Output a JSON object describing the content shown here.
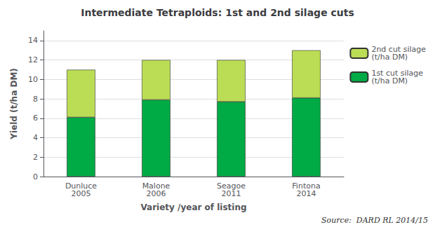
{
  "chart_data": {
    "type": "bar",
    "title": "Intermediate Tetraploids: 1st and 2nd silage cuts",
    "categories": [
      "Dunluce\n2005",
      "Malone\n2006",
      "Seagoe\n2011",
      "Fintona\n2014"
    ],
    "series": [
      {
        "name": "1st cut silage\n(t/ha DM)",
        "color": "#00aa44",
        "values": [
          6.1,
          7.9,
          7.7,
          8.1
        ]
      },
      {
        "name": "2nd cut silage\n(t/ha DM)",
        "color": "#bbdd55",
        "values": [
          4.9,
          4.1,
          4.3,
          4.9
        ]
      }
    ],
    "stacked": true,
    "xlabel": "Variety /year of listing",
    "ylabel": "Yield (t/ha DM)",
    "ylim": [
      0,
      15
    ],
    "yticks": [
      0,
      2,
      4,
      6,
      8,
      10,
      12,
      14
    ],
    "grid": true,
    "legend": "upper right",
    "annotations": [
      "Source:  DARD RL 2014/15"
    ]
  }
}
